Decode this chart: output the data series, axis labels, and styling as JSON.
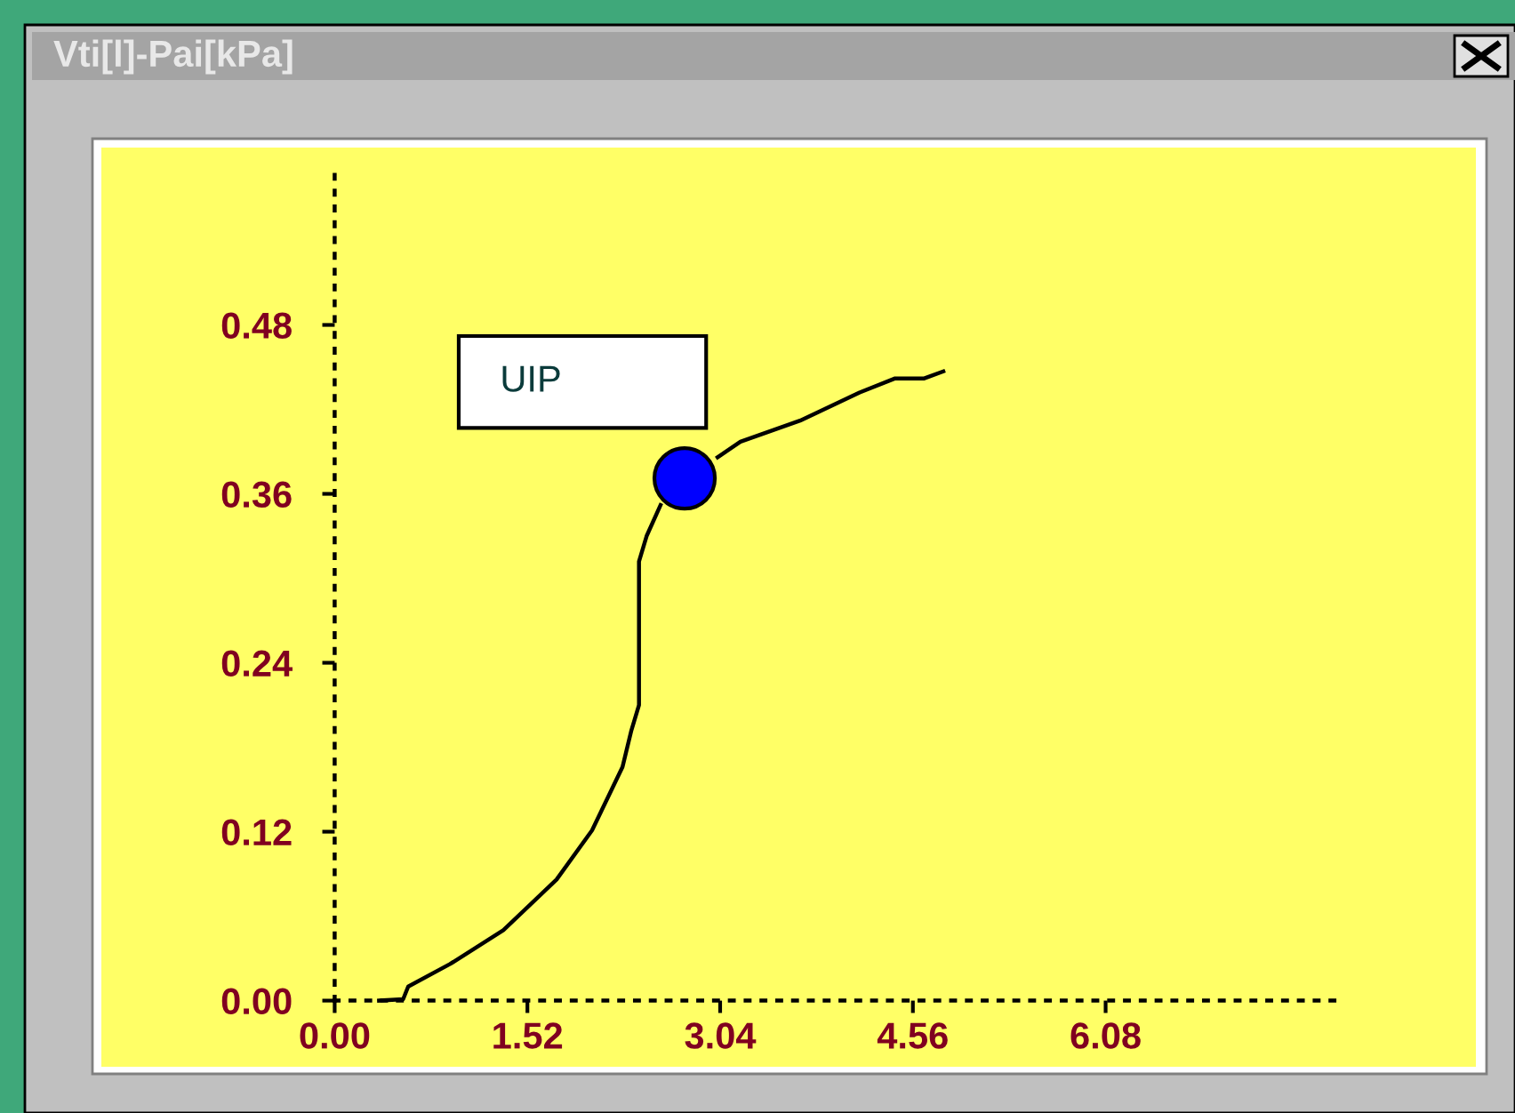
{
  "chart_data": {
    "type": "line",
    "title": "Vti[l]-Pai[kPa]",
    "series": [
      {
        "color": "#000000",
        "x": [
          0.35,
          0.54,
          0.58,
          0.91,
          1.33,
          1.75,
          2.03,
          2.27,
          2.34,
          2.4,
          2.4,
          2.46,
          2.57,
          2.76,
          3.02,
          3.2,
          3.67,
          4.14,
          4.42,
          4.65,
          4.8
        ],
        "values": [
          0,
          0.001,
          0.01,
          0.026,
          0.05,
          0.086,
          0.121,
          0.166,
          0.192,
          0.21,
          0.312,
          0.33,
          0.352,
          null,
          0.386,
          0.397,
          0.412,
          0.432,
          0.442,
          0.442,
          0.447
        ]
      },
      {
        "type": "scatter",
        "marker": "circle",
        "color": "#0000ff",
        "x": [
          2.76
        ],
        "values": [
          0.371
        ]
      }
    ],
    "annotations": [
      "UIP"
    ],
    "xlim": [
      -1.84,
      9.0
    ],
    "ylim": [
      -0.047,
      0.606
    ],
    "xticks": [
      {
        "value": 0,
        "label": "0.00"
      },
      1.52,
      3.04,
      4.56,
      6.08
    ],
    "yticks": [
      {
        "value": 0,
        "label": "0.00"
      },
      0.12,
      0.24,
      0.36,
      0.48
    ],
    "marker": "none",
    "line_style": "solid"
  }
}
